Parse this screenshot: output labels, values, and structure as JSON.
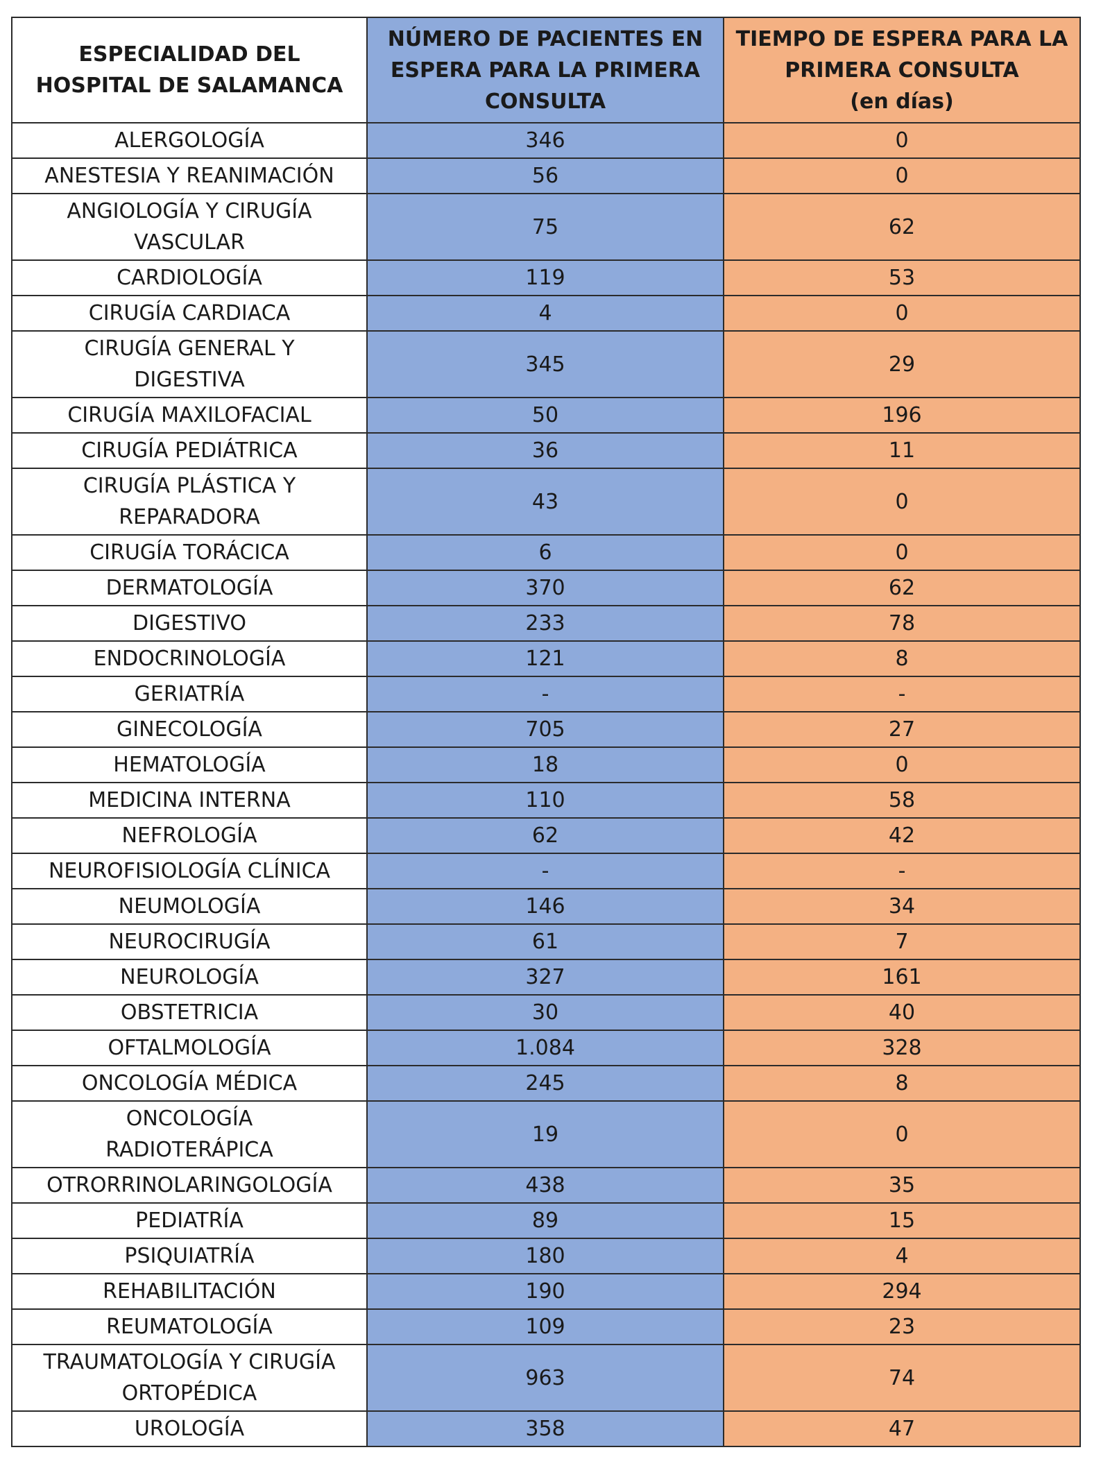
{
  "table": {
    "headers": {
      "col1": [
        "ESPECIALIDAD DEL",
        "HOSPITAL DE SALAMANCA"
      ],
      "col2": [
        "NÚMERO DE PACIENTES EN",
        "ESPERA PARA LA PRIMERA",
        "CONSULTA"
      ],
      "col3": [
        "TIEMPO DE ESPERA PARA LA",
        "PRIMERA CONSULTA",
        "(en días)"
      ]
    },
    "colors": {
      "pacientes_column": "#8eaadb",
      "espera_column": "#f4b183",
      "specialty_column": "#ffffff",
      "border": "#2b2b2b"
    },
    "rows": [
      {
        "lines": [
          "ALERGOLOGÍA"
        ],
        "pacientes": "346",
        "dias": "0"
      },
      {
        "lines": [
          "ANESTESIA Y REANIMACIÓN"
        ],
        "pacientes": "56",
        "dias": "0"
      },
      {
        "lines": [
          "ANGIOLOGÍA Y CIRUGÍA",
          "VASCULAR"
        ],
        "pacientes": "75",
        "dias": "62"
      },
      {
        "lines": [
          "CARDIOLOGÍA"
        ],
        "pacientes": "119",
        "dias": "53"
      },
      {
        "lines": [
          "CIRUGÍA CARDIACA"
        ],
        "pacientes": "4",
        "dias": "0"
      },
      {
        "lines": [
          "CIRUGÍA GENERAL Y",
          "DIGESTIVA"
        ],
        "pacientes": "345",
        "dias": "29"
      },
      {
        "lines": [
          "CIRUGÍA MAXILOFACIAL"
        ],
        "pacientes": "50",
        "dias": "196"
      },
      {
        "lines": [
          "CIRUGÍA PEDIÁTRICA"
        ],
        "pacientes": "36",
        "dias": "11"
      },
      {
        "lines": [
          "CIRUGÍA PLÁSTICA Y",
          "REPARADORA"
        ],
        "pacientes": "43",
        "dias": "0"
      },
      {
        "lines": [
          "CIRUGÍA TORÁCICA"
        ],
        "pacientes": "6",
        "dias": "0"
      },
      {
        "lines": [
          "DERMATOLOGÍA"
        ],
        "pacientes": "370",
        "dias": "62"
      },
      {
        "lines": [
          "DIGESTIVO"
        ],
        "pacientes": "233",
        "dias": "78"
      },
      {
        "lines": [
          "ENDOCRINOLOGÍA"
        ],
        "pacientes": "121",
        "dias": "8"
      },
      {
        "lines": [
          "GERIATRÍA"
        ],
        "pacientes": "-",
        "dias": "-"
      },
      {
        "lines": [
          "GINECOLOGÍA"
        ],
        "pacientes": "705",
        "dias": "27"
      },
      {
        "lines": [
          "HEMATOLOGÍA"
        ],
        "pacientes": "18",
        "dias": "0"
      },
      {
        "lines": [
          "MEDICINA INTERNA"
        ],
        "pacientes": "110",
        "dias": "58"
      },
      {
        "lines": [
          "NEFROLOGÍA"
        ],
        "pacientes": "62",
        "dias": "42"
      },
      {
        "lines": [
          "NEUROFISIOLOGÍA CLÍNICA"
        ],
        "pacientes": "-",
        "dias": "-"
      },
      {
        "lines": [
          "NEUMOLOGÍA"
        ],
        "pacientes": "146",
        "dias": "34"
      },
      {
        "lines": [
          "NEUROCIRUGÍA"
        ],
        "pacientes": "61",
        "dias": "7"
      },
      {
        "lines": [
          "NEUROLOGÍA"
        ],
        "pacientes": "327",
        "dias": "161"
      },
      {
        "lines": [
          "OBSTETRICIA"
        ],
        "pacientes": "30",
        "dias": "40"
      },
      {
        "lines": [
          "OFTALMOLOGÍA"
        ],
        "pacientes": "1.084",
        "dias": "328"
      },
      {
        "lines": [
          "ONCOLOGÍA MÉDICA"
        ],
        "pacientes": "245",
        "dias": "8"
      },
      {
        "lines": [
          "ONCOLOGÍA",
          "RADIOTERÁPICA"
        ],
        "pacientes": "19",
        "dias": "0"
      },
      {
        "lines": [
          "OTRORRINOLARINGOLOGÍA"
        ],
        "pacientes": "438",
        "dias": "35"
      },
      {
        "lines": [
          "PEDIATRÍA"
        ],
        "pacientes": "89",
        "dias": "15"
      },
      {
        "lines": [
          "PSIQUIATRÍA"
        ],
        "pacientes": "180",
        "dias": "4"
      },
      {
        "lines": [
          "REHABILITACIÓN"
        ],
        "pacientes": "190",
        "dias": "294"
      },
      {
        "lines": [
          "REUMATOLOGÍA"
        ],
        "pacientes": "109",
        "dias": "23"
      },
      {
        "lines": [
          "TRAUMATOLOGÍA Y CIRUGÍA",
          "ORTOPÉDICA"
        ],
        "pacientes": "963",
        "dias": "74"
      },
      {
        "lines": [
          "UROLOGÍA"
        ],
        "pacientes": "358",
        "dias": "47"
      }
    ]
  }
}
